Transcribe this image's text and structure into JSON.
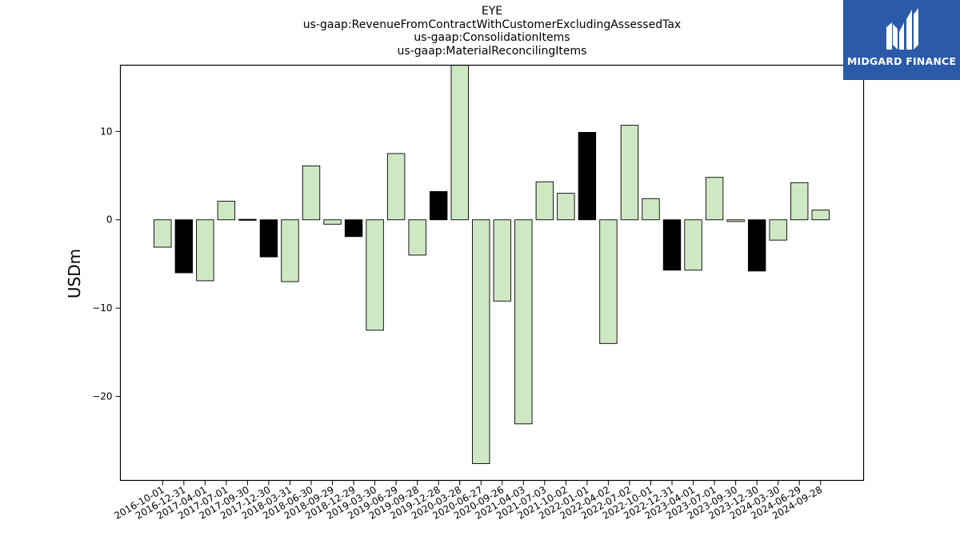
{
  "brand": {
    "name": "MIDGARD FINANCE",
    "logo_icon": "midgard-m-logo-icon",
    "background_color": "#2a5aa8"
  },
  "chart_data": {
    "type": "bar",
    "title_lines": [
      "EYE",
      "us-gaap:RevenueFromContractWithCustomerExcludingAssessedTax",
      "us-gaap:ConsolidationItems",
      "us-gaap:MaterialReconcilingItems"
    ],
    "ylabel": "USDm",
    "xlabel": "",
    "ylim": [
      -29.5,
      17.5
    ],
    "yticks": [
      -20,
      -10,
      0,
      10
    ],
    "grid": false,
    "categories": [
      "2016-10-01",
      "2016-12-31",
      "2017-04-01",
      "2017-07-01",
      "2017-09-30",
      "2017-12-30",
      "2018-03-31",
      "2018-06-30",
      "2018-09-29",
      "2018-12-29",
      "2019-03-30",
      "2019-06-29",
      "2019-09-28",
      "2019-12-28",
      "2020-03-28",
      "2020-06-27",
      "2020-09-26",
      "2021-04-03",
      "2021-07-03",
      "2021-10-02",
      "2022-01-01",
      "2022-04-02",
      "2022-07-02",
      "2022-10-01",
      "2022-12-31",
      "2023-04-01",
      "2023-07-01",
      "2023-09-30",
      "2023-12-30",
      "2024-03-30",
      "2024-06-29",
      "2024-09-28"
    ],
    "values": [
      -3.1,
      -6.0,
      -6.9,
      2.1,
      0.1,
      -4.2,
      -7.0,
      6.1,
      -0.5,
      -1.9,
      -12.5,
      7.5,
      -4.0,
      3.2,
      18.5,
      -27.6,
      -9.2,
      -23.1,
      4.3,
      3.0,
      9.9,
      -14.0,
      10.7,
      2.4,
      -5.7,
      -5.7,
      4.8,
      -0.2,
      -5.8,
      -2.3,
      4.2,
      1.1
    ],
    "bar_colors": [
      "#cfe8c4",
      "#000000",
      "#cfe8c4",
      "#cfe8c4",
      "#000000",
      "#000000",
      "#cfe8c4",
      "#cfe8c4",
      "#cfe8c4",
      "#000000",
      "#cfe8c4",
      "#cfe8c4",
      "#cfe8c4",
      "#000000",
      "#cfe8c4",
      "#cfe8c4",
      "#cfe8c4",
      "#cfe8c4",
      "#cfe8c4",
      "#cfe8c4",
      "#000000",
      "#cfe8c4",
      "#cfe8c4",
      "#cfe8c4",
      "#000000",
      "#cfe8c4",
      "#cfe8c4",
      "#cfe8c4",
      "#000000",
      "#cfe8c4",
      "#cfe8c4",
      "#cfe8c4"
    ]
  }
}
